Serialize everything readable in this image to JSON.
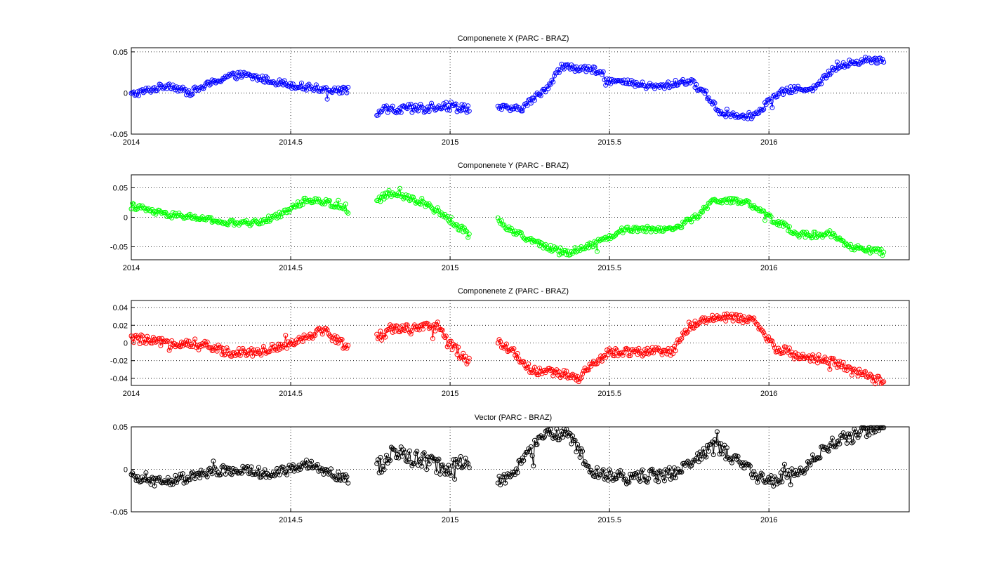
{
  "figure": {
    "background": "#ffffff"
  },
  "chart_data": [
    {
      "type": "line",
      "title": "Componenete X (PARC - BRAZ)",
      "color": "#0000ff",
      "marker": "circle",
      "grid": true,
      "xlim": [
        2014,
        2016.44
      ],
      "ylim": [
        -0.05,
        0.055
      ],
      "xticks": [
        2014,
        2014.5,
        2015,
        2015.5,
        2016
      ],
      "xticklabels": [
        "2014",
        "2014.5",
        "2015",
        "2015.5",
        "2016"
      ],
      "yticks": [
        0.05,
        0,
        -0.05
      ],
      "yticklabels": [
        "0.05",
        "0",
        "-0.05"
      ],
      "segments": [
        {
          "x0": 2014.0,
          "x1": 2014.68,
          "keys": [
            [
              0.0,
              -0.002
            ],
            [
              0.12,
              0.01
            ],
            [
              0.18,
              0.0
            ],
            [
              0.3,
              0.02
            ],
            [
              0.35,
              0.022
            ],
            [
              0.4,
              0.018
            ],
            [
              0.5,
              0.01
            ],
            [
              0.6,
              0.005
            ],
            [
              0.68,
              0.003
            ]
          ],
          "noise": 0.004
        },
        {
          "x0": 2014.77,
          "x1": 2015.06,
          "keys": [
            [
              0.0,
              -0.022
            ],
            [
              0.1,
              -0.02
            ],
            [
              0.2,
              -0.015
            ],
            [
              0.29,
              -0.018
            ]
          ],
          "noise": 0.006
        },
        {
          "x0": 2015.15,
          "x1": 2016.36,
          "keys": [
            [
              0.0,
              -0.018
            ],
            [
              0.07,
              -0.02
            ],
            [
              0.15,
              0.005
            ],
            [
              0.2,
              0.032
            ],
            [
              0.3,
              0.028
            ],
            [
              0.35,
              0.015
            ],
            [
              0.5,
              0.007
            ],
            [
              0.6,
              0.015
            ],
            [
              0.65,
              0.0
            ],
            [
              0.7,
              -0.025
            ],
            [
              0.8,
              -0.028
            ],
            [
              0.85,
              -0.01
            ],
            [
              0.9,
              0.003
            ],
            [
              1.0,
              0.007
            ],
            [
              1.05,
              0.03
            ],
            [
              1.15,
              0.04
            ],
            [
              1.21,
              0.04
            ]
          ],
          "noise": 0.004
        }
      ]
    },
    {
      "type": "line",
      "title": "Componenete Y (PARC - BRAZ)",
      "color": "#00ff00",
      "marker": "circle",
      "grid": true,
      "xlim": [
        2014,
        2016.44
      ],
      "ylim": [
        -0.072,
        0.072
      ],
      "xticks": [
        2014,
        2014.5,
        2015,
        2015.5,
        2016
      ],
      "xticklabels": [
        "2014",
        "2014.5",
        "2015",
        "2015.5",
        "2016"
      ],
      "yticks": [
        0.05,
        0,
        -0.05
      ],
      "yticklabels": [
        "0.05",
        "0",
        "-0.05"
      ],
      "segments": [
        {
          "x0": 2014.0,
          "x1": 2014.68,
          "keys": [
            [
              0.0,
              0.02
            ],
            [
              0.1,
              0.005
            ],
            [
              0.2,
              0.0
            ],
            [
              0.3,
              -0.01
            ],
            [
              0.38,
              -0.01
            ],
            [
              0.45,
              0.0
            ],
            [
              0.55,
              0.03
            ],
            [
              0.62,
              0.025
            ],
            [
              0.68,
              0.012
            ]
          ],
          "noise": 0.005
        },
        {
          "x0": 2014.77,
          "x1": 2015.06,
          "keys": [
            [
              0.0,
              0.03
            ],
            [
              0.05,
              0.04
            ],
            [
              0.15,
              0.025
            ],
            [
              0.22,
              0.0
            ],
            [
              0.29,
              -0.03
            ]
          ],
          "noise": 0.006
        },
        {
          "x0": 2015.15,
          "x1": 2016.36,
          "keys": [
            [
              0.0,
              -0.005
            ],
            [
              0.05,
              -0.025
            ],
            [
              0.15,
              -0.05
            ],
            [
              0.22,
              -0.06
            ],
            [
              0.3,
              -0.045
            ],
            [
              0.4,
              -0.02
            ],
            [
              0.55,
              -0.02
            ],
            [
              0.62,
              0.0
            ],
            [
              0.68,
              0.03
            ],
            [
              0.78,
              0.025
            ],
            [
              0.85,
              0.0
            ],
            [
              0.95,
              -0.03
            ],
            [
              1.05,
              -0.03
            ],
            [
              1.1,
              -0.05
            ],
            [
              1.21,
              -0.06
            ]
          ],
          "noise": 0.005
        }
      ]
    },
    {
      "type": "line",
      "title": "Componenete Z (PARC - BRAZ)",
      "color": "#ff0000",
      "marker": "circle",
      "grid": true,
      "xlim": [
        2014,
        2016.44
      ],
      "ylim": [
        -0.048,
        0.048
      ],
      "xticks": [
        2014,
        2014.5,
        2015,
        2015.5,
        2016
      ],
      "xticklabels": [
        "2014",
        "2014.5",
        "2015",
        "2015.5",
        "2016"
      ],
      "yticks": [
        0.04,
        0.02,
        0,
        -0.02,
        -0.04
      ],
      "yticklabels": [
        "0.04",
        "0.02",
        "0",
        "-0.02",
        "-0.04"
      ],
      "segments": [
        {
          "x0": 2014.0,
          "x1": 2014.68,
          "keys": [
            [
              0.0,
              0.005
            ],
            [
              0.1,
              0.0
            ],
            [
              0.2,
              0.0
            ],
            [
              0.3,
              -0.01
            ],
            [
              0.4,
              -0.01
            ],
            [
              0.5,
              0.0
            ],
            [
              0.6,
              0.015
            ],
            [
              0.68,
              -0.005
            ]
          ],
          "noise": 0.005
        },
        {
          "x0": 2014.77,
          "x1": 2015.06,
          "keys": [
            [
              0.0,
              0.005
            ],
            [
              0.05,
              0.018
            ],
            [
              0.12,
              0.015
            ],
            [
              0.2,
              0.02
            ],
            [
              0.22,
              0.0
            ],
            [
              0.29,
              -0.02
            ]
          ],
          "noise": 0.006
        },
        {
          "x0": 2015.15,
          "x1": 2016.36,
          "keys": [
            [
              0.0,
              0.0
            ],
            [
              0.05,
              -0.01
            ],
            [
              0.1,
              -0.03
            ],
            [
              0.2,
              -0.035
            ],
            [
              0.25,
              -0.04
            ],
            [
              0.3,
              -0.025
            ],
            [
              0.35,
              -0.01
            ],
            [
              0.55,
              -0.01
            ],
            [
              0.6,
              0.02
            ],
            [
              0.7,
              0.03
            ],
            [
              0.8,
              0.025
            ],
            [
              0.87,
              -0.005
            ],
            [
              0.95,
              -0.015
            ],
            [
              1.05,
              -0.02
            ],
            [
              1.1,
              -0.03
            ],
            [
              1.21,
              -0.045
            ]
          ],
          "noise": 0.005
        }
      ]
    },
    {
      "type": "line",
      "title": "Vector (PARC - BRAZ)",
      "color": "#000000",
      "marker": "circle",
      "grid": true,
      "xlim": [
        2014,
        2016.44
      ],
      "ylim": [
        -0.05,
        0.05
      ],
      "xticks": [
        2014.5,
        2015,
        2015.5,
        2016
      ],
      "xticklabels": [
        "2014.5",
        "2015",
        "2015.5",
        "2016"
      ],
      "yticks": [
        0.05,
        0,
        -0.05
      ],
      "yticklabels": [
        "0.05",
        "0",
        "-0.05"
      ],
      "segments": [
        {
          "x0": 2014.0,
          "x1": 2014.68,
          "keys": [
            [
              0.0,
              -0.01
            ],
            [
              0.1,
              -0.015
            ],
            [
              0.2,
              -0.008
            ],
            [
              0.3,
              0.0
            ],
            [
              0.45,
              -0.005
            ],
            [
              0.55,
              0.005
            ],
            [
              0.6,
              0.0
            ],
            [
              0.68,
              -0.012
            ]
          ],
          "noise": 0.006
        },
        {
          "x0": 2014.77,
          "x1": 2015.06,
          "keys": [
            [
              0.0,
              0.0
            ],
            [
              0.05,
              0.02
            ],
            [
              0.15,
              0.01
            ],
            [
              0.22,
              0.0
            ],
            [
              0.29,
              0.01
            ]
          ],
          "noise": 0.01
        },
        {
          "x0": 2015.15,
          "x1": 2016.36,
          "keys": [
            [
              0.0,
              -0.015
            ],
            [
              0.05,
              -0.005
            ],
            [
              0.1,
              0.02
            ],
            [
              0.15,
              0.045
            ],
            [
              0.22,
              0.04
            ],
            [
              0.3,
              -0.005
            ],
            [
              0.4,
              -0.01
            ],
            [
              0.55,
              -0.005
            ],
            [
              0.6,
              0.005
            ],
            [
              0.68,
              0.03
            ],
            [
              0.78,
              0.0
            ],
            [
              0.85,
              -0.015
            ],
            [
              0.95,
              0.0
            ],
            [
              1.05,
              0.03
            ],
            [
              1.15,
              0.045
            ],
            [
              1.21,
              0.05
            ]
          ],
          "noise": 0.008
        }
      ]
    }
  ]
}
